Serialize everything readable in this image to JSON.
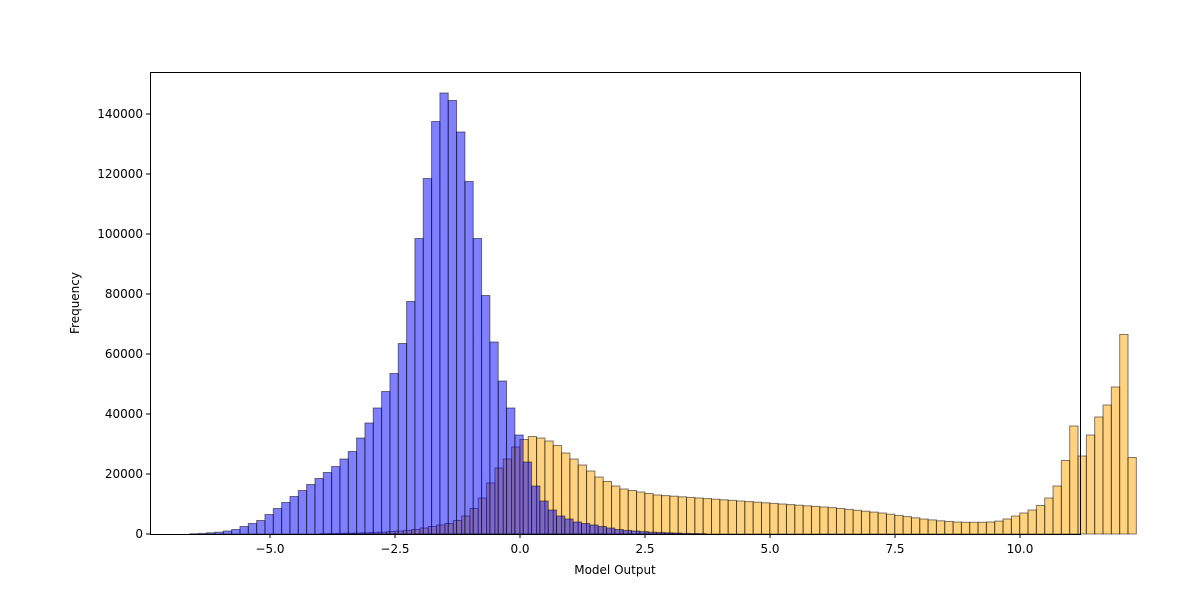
{
  "chart_data": {
    "type": "bar",
    "title": "",
    "xlabel": "Model Output",
    "ylabel": "Frequency",
    "xlim": [
      -7.4,
      11.2
    ],
    "ylim": [
      0,
      154000
    ],
    "xticks": [
      -5.0,
      -2.5,
      0.0,
      2.5,
      5.0,
      7.5,
      10.0
    ],
    "xtick_labels": [
      "−5.0",
      "−2.5",
      "0.0",
      "2.5",
      "5.0",
      "7.5",
      "10.0"
    ],
    "yticks": [
      0,
      20000,
      40000,
      60000,
      80000,
      100000,
      120000,
      140000
    ],
    "ytick_labels": [
      "0",
      "20000",
      "40000",
      "60000",
      "80000",
      "100000",
      "120000",
      "140000"
    ],
    "grid": false,
    "legend": "none",
    "series": [
      {
        "color": "#ffa500",
        "alpha": 0.5,
        "bin_width": 0.1666,
        "bin_start": -4.0,
        "values": [
          100,
          150,
          200,
          250,
          300,
          400,
          500,
          600,
          800,
          1000,
          1200,
          1500,
          2000,
          2500,
          3000,
          3500,
          4500,
          6000,
          8500,
          12000,
          17000,
          22000,
          25000,
          29000,
          31500,
          32500,
          32000,
          31000,
          29500,
          27000,
          25000,
          23000,
          21000,
          19000,
          17500,
          16000,
          15000,
          14500,
          14000,
          13500,
          13000,
          12800,
          12600,
          12400,
          12200,
          12000,
          11800,
          11600,
          11400,
          11200,
          11000,
          10800,
          10600,
          10400,
          10200,
          10000,
          9800,
          9600,
          9400,
          9200,
          9000,
          8800,
          8500,
          8200,
          7900,
          7600,
          7300,
          7000,
          6600,
          6200,
          5800,
          5400,
          5000,
          4700,
          4400,
          4200,
          4000,
          3900,
          3900,
          3900,
          4000,
          4300,
          5000,
          6000,
          7000,
          8000,
          9500,
          12000,
          16000,
          24500,
          36000,
          26000,
          33000,
          39000,
          43000,
          49000,
          66500,
          25500
        ]
      },
      {
        "color": "#0000ff",
        "alpha": 0.5,
        "bin_width": 0.1666,
        "bin_start": -6.6,
        "values": [
          100,
          200,
          400,
          600,
          1000,
          1500,
          2500,
          3500,
          4500,
          6500,
          8500,
          10500,
          12500,
          14500,
          16500,
          18500,
          20500,
          22500,
          25000,
          27500,
          32000,
          37000,
          42000,
          47500,
          53500,
          63500,
          77500,
          98500,
          118500,
          137500,
          147000,
          144500,
          134000,
          117500,
          98500,
          79500,
          64000,
          51000,
          42000,
          33000,
          24000,
          16000,
          11000,
          8000,
          6000,
          5000,
          4000,
          3500,
          3000,
          2500,
          2000,
          1500,
          1200,
          1000,
          800,
          600,
          500,
          400,
          300,
          200,
          150,
          100
        ]
      }
    ]
  }
}
